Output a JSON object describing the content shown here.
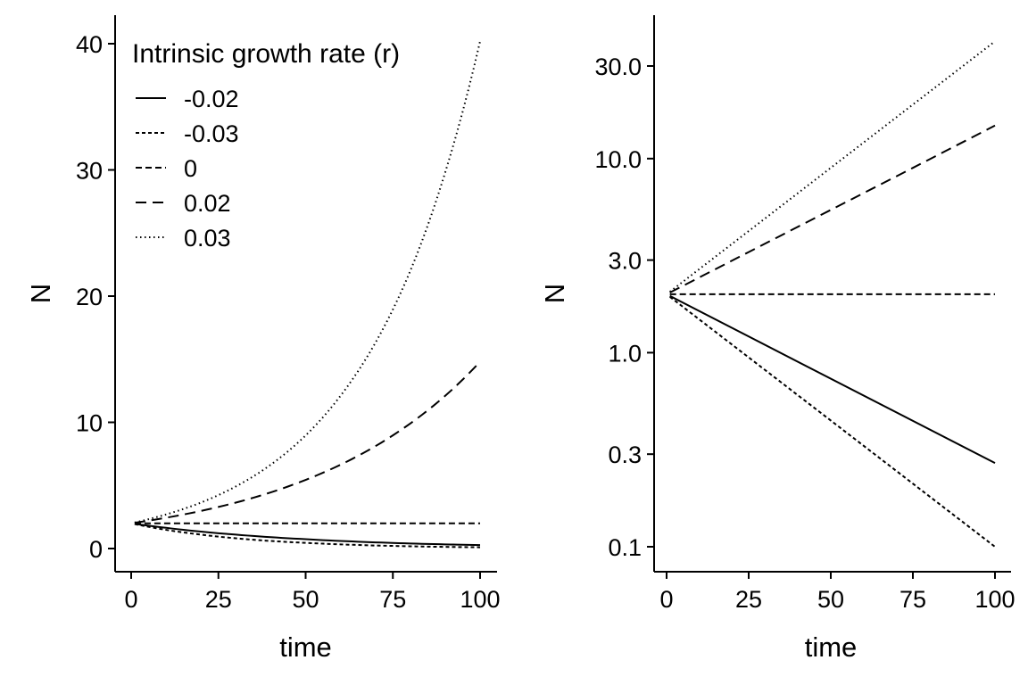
{
  "chart_data": [
    {
      "type": "line",
      "title": "",
      "xlabel": "time",
      "ylabel": "N",
      "xlim": [
        0,
        100
      ],
      "ylim": [
        0,
        40
      ],
      "xticks": [
        0,
        25,
        50,
        75,
        100
      ],
      "xtick_labels": [
        "0",
        "25",
        "50",
        "75",
        "100"
      ],
      "yticks": [
        0,
        10,
        20,
        30,
        40
      ],
      "ytick_labels": [
        "0",
        "10",
        "20",
        "30",
        "40"
      ],
      "yscale": "linear",
      "grid": false,
      "legend": {
        "title": "Intrinsic growth rate (r)",
        "placement": "top-left",
        "entries": [
          "-0.02",
          "-0.03",
          "0",
          "0.02",
          "0.03"
        ]
      },
      "series": [
        {
          "name": "-0.02",
          "line_style": "solid",
          "x": [
            1,
            10,
            20,
            30,
            40,
            50,
            60,
            70,
            80,
            90,
            100
          ],
          "values": [
            1.96,
            1.64,
            1.34,
            1.1,
            0.9,
            0.74,
            0.6,
            0.49,
            0.4,
            0.33,
            0.27
          ]
        },
        {
          "name": "-0.03",
          "line_style": "short-dash",
          "x": [
            1,
            10,
            20,
            30,
            40,
            50,
            60,
            70,
            80,
            90,
            100
          ],
          "values": [
            1.94,
            1.48,
            1.1,
            0.81,
            0.6,
            0.45,
            0.33,
            0.24,
            0.18,
            0.13,
            0.1
          ]
        },
        {
          "name": "0",
          "line_style": "dashed",
          "x": [
            1,
            100
          ],
          "values": [
            2,
            2
          ]
        },
        {
          "name": "0.02",
          "line_style": "long-dash",
          "x": [
            1,
            10,
            20,
            30,
            40,
            50,
            60,
            70,
            80,
            90,
            100
          ],
          "values": [
            2.04,
            2.44,
            2.98,
            3.64,
            4.45,
            5.44,
            6.64,
            8.11,
            9.91,
            12.1,
            14.8
          ]
        },
        {
          "name": "0.03",
          "line_style": "dotted",
          "x": [
            1,
            10,
            20,
            30,
            40,
            50,
            60,
            70,
            80,
            90,
            100
          ],
          "values": [
            2.06,
            2.7,
            3.64,
            4.92,
            6.64,
            8.96,
            12.1,
            16.3,
            22.0,
            29.8,
            40.2
          ]
        }
      ]
    },
    {
      "type": "line",
      "title": "",
      "xlabel": "time",
      "ylabel": "N",
      "xlim": [
        0,
        100
      ],
      "ylim": [
        0.08,
        45
      ],
      "xticks": [
        0,
        25,
        50,
        75,
        100
      ],
      "xtick_labels": [
        "0",
        "25",
        "50",
        "75",
        "100"
      ],
      "yticks": [
        0.1,
        0.3,
        1.0,
        3.0,
        10.0,
        30.0
      ],
      "ytick_labels": [
        "0.1",
        "0.3",
        "1.0",
        "3.0",
        "10.0",
        "30.0"
      ],
      "yscale": "log",
      "grid": false,
      "series": [
        {
          "name": "-0.02",
          "line_style": "solid",
          "x": [
            1,
            100
          ],
          "values": [
            1.96,
            0.27
          ]
        },
        {
          "name": "-0.03",
          "line_style": "short-dash",
          "x": [
            1,
            100
          ],
          "values": [
            1.94,
            0.1
          ]
        },
        {
          "name": "0",
          "line_style": "dashed",
          "x": [
            1,
            100
          ],
          "values": [
            2,
            2
          ]
        },
        {
          "name": "0.02",
          "line_style": "long-dash",
          "x": [
            1,
            25,
            50,
            75,
            100
          ],
          "values": [
            2.04,
            3.3,
            5.44,
            8.96,
            14.8
          ]
        },
        {
          "name": "0.03",
          "line_style": "dotted",
          "x": [
            1,
            100
          ],
          "values": [
            2.06,
            40.2
          ]
        }
      ]
    }
  ]
}
